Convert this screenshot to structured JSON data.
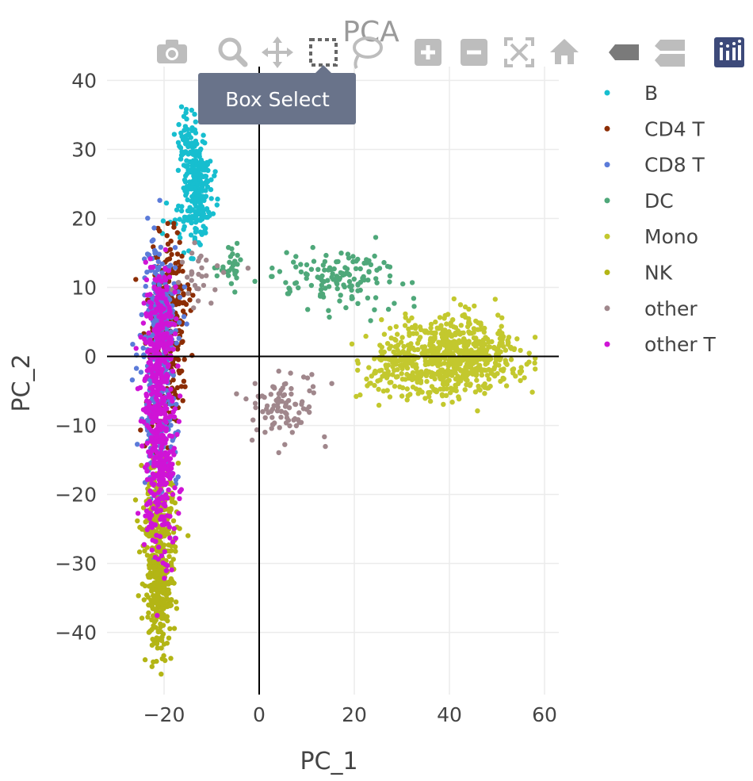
{
  "toolbar": {
    "buttons": [
      "camera-icon",
      "zoom-icon",
      "pan-icon",
      "box-select-icon",
      "lasso-icon",
      "zoom-in-icon",
      "zoom-out-icon",
      "autoscale-icon",
      "reset-axes-icon",
      "hover-closest-icon",
      "hover-compare-icon",
      "plotly-logo-icon"
    ],
    "active": "box-select-icon",
    "tooltip": "Box Select",
    "icon_color": "#bdbdbd",
    "logo_color": "#3d4a7a"
  },
  "chart_data": {
    "type": "scatter",
    "title": "PCA",
    "xlabel": "PC_1",
    "ylabel": "PC_2",
    "xlim": [
      -32,
      63
    ],
    "ylim": [
      -49,
      42
    ],
    "xticks": [
      -20,
      0,
      20,
      40,
      60
    ],
    "yticks": [
      40,
      30,
      20,
      10,
      0,
      -10,
      -20,
      -30,
      -40
    ],
    "xtick_labels": [
      "−20",
      "0",
      "20",
      "40",
      "60"
    ],
    "ytick_labels": [
      "40",
      "30",
      "20",
      "10",
      "0",
      "−10",
      "−20",
      "−30",
      "−40"
    ],
    "grid": true,
    "legend_position": "right",
    "series": [
      {
        "name": "B",
        "color": "#17becf",
        "clusters": [
          {
            "cx": -13,
            "cy": 25,
            "sx": 1.5,
            "sy": 3.5,
            "n": 220
          },
          {
            "cx": -15,
            "cy": 31,
            "sx": 1.2,
            "sy": 2.5,
            "n": 50
          },
          {
            "cx": -16,
            "cy": 19,
            "sx": 3.0,
            "sy": 1.5,
            "n": 30
          }
        ]
      },
      {
        "name": "CD4 T",
        "color": "#8c2d04",
        "clusters": [
          {
            "cx": -19,
            "cy": 8,
            "sx": 2.0,
            "sy": 4.5,
            "n": 200
          },
          {
            "cx": -20,
            "cy": -3,
            "sx": 2.0,
            "sy": 5.0,
            "n": 100
          }
        ]
      },
      {
        "name": "CD8 T",
        "color": "#5b7bd9",
        "clusters": [
          {
            "cx": -21,
            "cy": 5,
            "sx": 1.8,
            "sy": 6.0,
            "n": 260
          },
          {
            "cx": -21,
            "cy": -12,
            "sx": 2.0,
            "sy": 6.0,
            "n": 140
          }
        ]
      },
      {
        "name": "DC",
        "color": "#4fa87a",
        "clusters": [
          {
            "cx": 18,
            "cy": 11,
            "sx": 7.0,
            "sy": 2.0,
            "n": 140
          },
          {
            "cx": -6,
            "cy": 13,
            "sx": 1.5,
            "sy": 1.5,
            "n": 30
          }
        ]
      },
      {
        "name": "Mono",
        "color": "#c3c82e",
        "clusters": [
          {
            "cx": 42,
            "cy": 0,
            "sx": 6.0,
            "sy": 2.5,
            "n": 620
          },
          {
            "cx": 29,
            "cy": -1,
            "sx": 4.0,
            "sy": 2.5,
            "n": 150
          }
        ]
      },
      {
        "name": "NK",
        "color": "#b3b515",
        "clusters": [
          {
            "cx": -21,
            "cy": -33,
            "sx": 1.5,
            "sy": 4.5,
            "n": 320
          },
          {
            "cx": -21,
            "cy": -22,
            "sx": 2.0,
            "sy": 4.0,
            "n": 140
          }
        ]
      },
      {
        "name": "other",
        "color": "#a0878c",
        "clusters": [
          {
            "cx": 5,
            "cy": -7,
            "sx": 4.0,
            "sy": 2.5,
            "n": 90
          },
          {
            "cx": -12,
            "cy": 12,
            "sx": 3.0,
            "sy": 2.0,
            "n": 30
          }
        ]
      },
      {
        "name": "other T",
        "color": "#cf14d6",
        "clusters": [
          {
            "cx": -21,
            "cy": -7,
            "sx": 1.6,
            "sy": 7.0,
            "n": 320
          },
          {
            "cx": -21,
            "cy": 6,
            "sx": 1.5,
            "sy": 4.0,
            "n": 120
          },
          {
            "cx": -21,
            "cy": -21,
            "sx": 1.6,
            "sy": 5.0,
            "n": 120
          }
        ]
      }
    ]
  }
}
